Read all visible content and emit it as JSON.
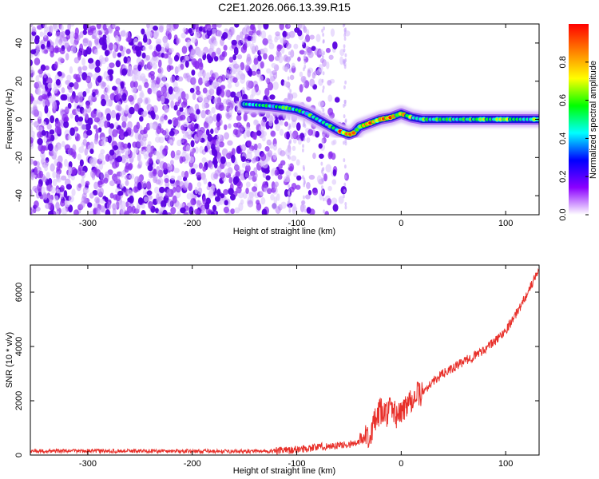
{
  "figure": {
    "title": "C2E1.2026.066.13.39.R15"
  },
  "chart_data": [
    {
      "type": "heatmap",
      "title": "C2E1.2026.066.13.39.R15",
      "xlabel": "Height of straight line (km)",
      "ylabel": "Frequency (Hz)",
      "xlim": [
        -355,
        132
      ],
      "ylim": [
        -50,
        50
      ],
      "xticks": [
        -300,
        -200,
        -100,
        0,
        100
      ],
      "yticks": [
        -40,
        -20,
        0,
        20,
        40
      ],
      "colorbar": {
        "label": "Normalized spectral amplitude",
        "range": [
          0.0,
          1.0
        ],
        "ticks": [
          0.0,
          0.2,
          0.4,
          0.6,
          0.8
        ],
        "tick_labels": [
          "0.0",
          "0.2",
          "0.4",
          "0.6",
          "0.8"
        ],
        "colormap": [
          "#ffffff",
          "#8b00ff",
          "#0000ff",
          "#00ffff",
          "#00ff00",
          "#ffff00",
          "#ff8000",
          "#ff0000"
        ]
      },
      "noise_region_x": [
        -355,
        -50
      ],
      "signal_track": {
        "x": [
          -150,
          -125,
          -110,
          -100,
          -90,
          -80,
          -70,
          -60,
          -50,
          -45,
          -40,
          -30,
          -20,
          -10,
          0,
          10,
          20,
          40,
          60,
          80,
          100,
          120,
          132
        ],
        "y": [
          8,
          7,
          6,
          5,
          3,
          0,
          -3,
          -6,
          -8,
          -7,
          -4,
          -2,
          0,
          1,
          3,
          1,
          0,
          0,
          0,
          0,
          0,
          0,
          0
        ]
      }
    },
    {
      "type": "line",
      "xlabel": "Height of straight line (km)",
      "ylabel": "SNR (10 * v/v)",
      "xlim": [
        -355,
        132
      ],
      "ylim": [
        0,
        7000
      ],
      "xticks": [
        -300,
        -200,
        -100,
        0,
        100
      ],
      "yticks": [
        0,
        2000,
        4000,
        6000
      ],
      "series": [
        {
          "name": "SNR",
          "color": "#e8302a",
          "x": [
            -355,
            -300,
            -250,
            -200,
            -150,
            -120,
            -100,
            -80,
            -60,
            -50,
            -40,
            -30,
            -25,
            -20,
            -15,
            -10,
            -5,
            0,
            5,
            10,
            15,
            20,
            30,
            40,
            50,
            60,
            70,
            80,
            90,
            100,
            110,
            120,
            125,
            132
          ],
          "y": [
            150,
            150,
            150,
            140,
            130,
            150,
            200,
            300,
            350,
            400,
            450,
            800,
            1200,
            1600,
            1500,
            1700,
            1500,
            1500,
            1900,
            2100,
            2200,
            2300,
            2700,
            3000,
            3200,
            3450,
            3650,
            3900,
            4200,
            4600,
            5200,
            5900,
            6300,
            6800
          ]
        }
      ]
    }
  ]
}
